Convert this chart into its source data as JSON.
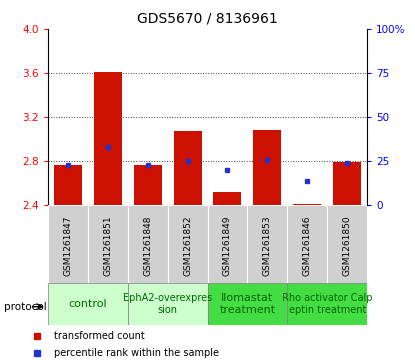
{
  "title": "GDS5670 / 8136961",
  "samples": [
    "GSM1261847",
    "GSM1261851",
    "GSM1261848",
    "GSM1261852",
    "GSM1261849",
    "GSM1261853",
    "GSM1261846",
    "GSM1261850"
  ],
  "bar_bottoms": [
    2.4,
    2.4,
    2.4,
    2.4,
    2.4,
    2.4,
    2.4,
    2.4
  ],
  "bar_tops": [
    2.76,
    3.61,
    2.76,
    3.07,
    2.52,
    3.08,
    2.41,
    2.79
  ],
  "blue_y": [
    2.76,
    2.93,
    2.76,
    2.8,
    2.72,
    2.81,
    2.62,
    2.78
  ],
  "ylim": [
    2.4,
    4.0
  ],
  "yticks_left": [
    2.4,
    2.8,
    3.2,
    3.6,
    4.0
  ],
  "yticks_right": [
    0,
    25,
    50,
    75,
    100
  ],
  "bar_color": "#cc1100",
  "blue_color": "#2233cc",
  "grid_color": "#444444",
  "cell_bg": "#d0d0d0",
  "protocols": [
    {
      "label": "control",
      "start": 0,
      "end": 2,
      "color": "#ccffcc",
      "text_color": "#006600",
      "fontsize": 8
    },
    {
      "label": "EphA2-overexpres\nsion",
      "start": 2,
      "end": 4,
      "color": "#ccffcc",
      "text_color": "#006600",
      "fontsize": 7
    },
    {
      "label": "Ilomastat\ntreatment",
      "start": 4,
      "end": 6,
      "color": "#44dd44",
      "text_color": "#006600",
      "fontsize": 8
    },
    {
      "label": "Rho activator Calp\neptin treatment",
      "start": 6,
      "end": 8,
      "color": "#44dd44",
      "text_color": "#006600",
      "fontsize": 7
    }
  ],
  "legend_items": [
    {
      "label": "transformed count",
      "color": "#cc1100",
      "marker": "s"
    },
    {
      "label": "percentile rank within the sample",
      "color": "#2233cc",
      "marker": "s"
    }
  ],
  "protocol_label": "protocol"
}
